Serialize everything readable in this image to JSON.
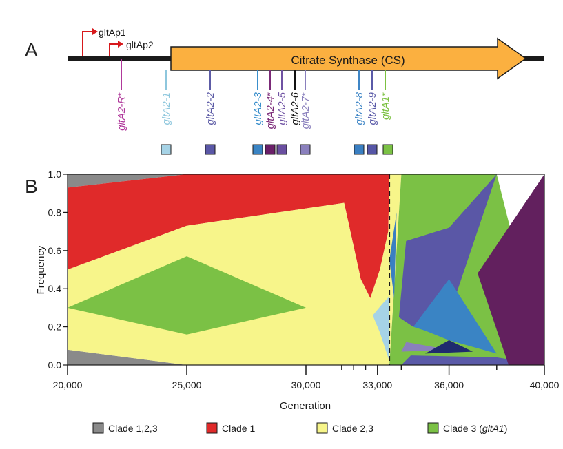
{
  "panel_a": {
    "label": "A",
    "gene_label": "Citrate Synthase (CS)",
    "promoter_labels": [
      "gltAp1",
      "gltAp2"
    ],
    "mutations": [
      {
        "parts": [
          {
            "t": "gltA2-R",
            "i": true
          },
          {
            "t": "*",
            "i": false
          }
        ],
        "color": "#b0399b",
        "box": null
      },
      {
        "parts": [
          {
            "t": "gltA2-1",
            "i": true
          }
        ],
        "color": "#8ec7dd",
        "box": "#a6d3e6"
      },
      {
        "parts": [
          {
            "t": "gltA2-2",
            "i": true
          }
        ],
        "color": "#5d5ca6",
        "box": "#5a57a6"
      },
      {
        "parts": [
          {
            "t": "gltA2-3",
            "i": true
          }
        ],
        "color": "#3a8fcc",
        "box": "#3a84c4"
      },
      {
        "parts": [
          {
            "t": "gltA2-4",
            "i": true
          },
          {
            "t": "*",
            "i": false
          }
        ],
        "color": "#7b2a78",
        "box": "#6a1f68"
      },
      {
        "parts": [
          {
            "t": "gltA2-5",
            "i": true
          }
        ],
        "color": "#6f52a3",
        "box": "#6a4fa0"
      },
      {
        "parts": [
          {
            "t": "gltA2-6",
            "i": true
          }
        ],
        "color": "#111111",
        "box": null
      },
      {
        "parts": [
          {
            "t": "gltA2-7",
            "i": true
          },
          {
            "t": "*",
            "i": false
          }
        ],
        "color": "#8a80bd",
        "box": "#8a80bd"
      },
      {
        "parts": [
          {
            "t": "gltA2-8",
            "i": true
          }
        ],
        "color": "#3f86c6",
        "box": "#3a7fc2"
      },
      {
        "parts": [
          {
            "t": "gltA2-9",
            "i": true
          }
        ],
        "color": "#5a5aa8",
        "box": "#5656a6"
      },
      {
        "parts": [
          {
            "t": "gltA1",
            "i": true
          },
          {
            "t": "*",
            "i": false
          }
        ],
        "color": "#7cc142",
        "box": "#7bc145"
      }
    ]
  },
  "chart_data": {
    "type": "area",
    "panel_label": "B",
    "xlabel": "Generation",
    "ylabel": "Frequency",
    "xlim": [
      20000,
      40000
    ],
    "ylim": [
      0,
      1.0
    ],
    "x_ticks": [
      20000,
      25000,
      30000,
      33000,
      36000,
      40000
    ],
    "x_tick_labels": [
      "20,000",
      "25,000",
      "30,000",
      "33,000",
      "36,000",
      "40,000"
    ],
    "minor_x_ticks": [
      31500,
      32000,
      32500,
      34000,
      38000
    ],
    "y_ticks": [
      0.0,
      0.2,
      0.4,
      0.6,
      0.8,
      1.0
    ],
    "y_tick_labels": [
      "0.0",
      "0.2",
      "0.4",
      "0.6",
      "0.8",
      "1.0"
    ],
    "dashed_line_x": 33500,
    "legend": [
      {
        "label": "Clade 1,2,3",
        "parts": [
          {
            "t": "Clade 1,2,3",
            "i": false
          }
        ],
        "color": "#8a8a8a"
      },
      {
        "label": "Clade 1",
        "parts": [
          {
            "t": "Clade 1",
            "i": false
          }
        ],
        "color": "#e02a2a"
      },
      {
        "label": "Clade 2,3",
        "parts": [
          {
            "t": "Clade 2,3",
            "i": false
          }
        ],
        "color": "#f7f58a"
      },
      {
        "label": "Clade 3 (gltA1)",
        "parts": [
          {
            "t": "Clade 3 (",
            "i": false
          },
          {
            "t": "gltA1",
            "i": true
          },
          {
            "t": ")",
            "i": false
          }
        ],
        "color": "#7bc145"
      }
    ],
    "series": [
      {
        "name": "Clade 1,2,3",
        "color": "#8a8a8a",
        "points": [
          [
            20000,
            1.0
          ],
          [
            20000,
            0.93
          ],
          [
            25000,
            1.0
          ],
          [
            25000,
            1.0
          ]
        ]
      },
      {
        "name": "Clade 1,2,3",
        "color": "#8a8a8a",
        "points": [
          [
            20000,
            0.08
          ],
          [
            25000,
            0.0
          ],
          [
            20000,
            0.0
          ]
        ]
      },
      {
        "name": "Clade 1",
        "color": "#e02a2a",
        "points": [
          [
            20000,
            0.93
          ],
          [
            25000,
            1.0
          ],
          [
            33500,
            1.0
          ],
          [
            33450,
            0.7
          ],
          [
            33100,
            0.5
          ],
          [
            32700,
            0.35
          ],
          [
            32300,
            0.45
          ],
          [
            31600,
            0.85
          ],
          [
            25000,
            0.73
          ],
          [
            20000,
            0.5
          ]
        ]
      },
      {
        "name": "Clade 2,3",
        "color": "#f7f58a",
        "points": [
          [
            20000,
            0.5
          ],
          [
            25000,
            0.73
          ],
          [
            31600,
            0.85
          ],
          [
            32300,
            0.45
          ],
          [
            32700,
            0.35
          ],
          [
            33100,
            0.5
          ],
          [
            33450,
            0.7
          ],
          [
            33500,
            1.0
          ],
          [
            34000,
            1.0
          ],
          [
            33500,
            0.0
          ],
          [
            25000,
            0.0
          ],
          [
            20000,
            0.08
          ]
        ]
      },
      {
        "name": "Clade 3",
        "color": "#7bc145",
        "points": [
          [
            20000,
            0.3
          ],
          [
            25000,
            0.57
          ],
          [
            30000,
            0.3
          ],
          [
            25000,
            0.16
          ]
        ]
      },
      {
        "name": "Clade 3",
        "color": "#7bc145",
        "points": [
          [
            33500,
            0.0
          ],
          [
            34000,
            1.0
          ],
          [
            38000,
            1.0
          ],
          [
            40000,
            0.0
          ]
        ]
      },
      {
        "name": "",
        "color": "#a6d3e6",
        "points": [
          [
            32800,
            0.26
          ],
          [
            33200,
            0.32
          ],
          [
            33500,
            0.36
          ],
          [
            33500,
            0.02
          ],
          [
            33100,
            0.17
          ]
        ]
      },
      {
        "name": "",
        "color": "#3a7fc2",
        "points": [
          [
            33500,
            0.55
          ],
          [
            33800,
            0.8
          ],
          [
            33700,
            0.35
          ]
        ]
      },
      {
        "name": "",
        "color": "#5a57a6",
        "points": [
          [
            33900,
            0.25
          ],
          [
            34200,
            0.65
          ],
          [
            36000,
            0.72
          ],
          [
            38000,
            1.0
          ],
          [
            36000,
            0.26
          ],
          [
            34500,
            0.2
          ]
        ]
      },
      {
        "name": "",
        "color": "#3a84c4",
        "points": [
          [
            34500,
            0.2
          ],
          [
            36000,
            0.45
          ],
          [
            38000,
            0.06
          ],
          [
            36000,
            0.13
          ],
          [
            35000,
            0.18
          ]
        ]
      },
      {
        "name": "",
        "color": "#8a80bd",
        "points": [
          [
            34000,
            0.07
          ],
          [
            36000,
            0.08
          ],
          [
            34200,
            0.12
          ]
        ]
      },
      {
        "name": "",
        "color": "#1f2a6e",
        "points": [
          [
            35000,
            0.06
          ],
          [
            36000,
            0.13
          ],
          [
            37000,
            0.07
          ]
        ]
      },
      {
        "name": "",
        "color": "#5a5aa8",
        "points": [
          [
            34000,
            0.0
          ],
          [
            34400,
            0.05
          ],
          [
            38000,
            0.04
          ],
          [
            40000,
            0.0
          ]
        ]
      },
      {
        "name": "",
        "color": "#62205e",
        "points": [
          [
            37200,
            0.48
          ],
          [
            40000,
            1.0
          ],
          [
            40000,
            0.0
          ],
          [
            38500,
            0.0
          ]
        ]
      }
    ]
  }
}
